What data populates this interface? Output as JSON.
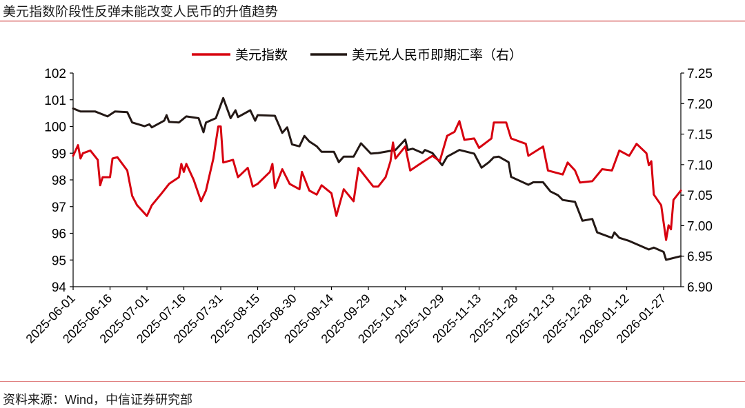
{
  "title": "美元指数阶段性反弹未能改变人民币的升值趋势",
  "source": "资料来源：Wind，中信证券研究部",
  "chart_data": {
    "type": "line",
    "title": "美元指数阶段性反弹未能改变人民币的升值趋势",
    "xlabel": "",
    "ylabel": "",
    "y2label": "",
    "xlim": [
      "2025-06-01",
      "2026-02-03"
    ],
    "ylim": [
      94,
      102
    ],
    "y2lim": [
      6.9,
      7.25
    ],
    "yticks": [
      "94",
      "95",
      "96",
      "97",
      "98",
      "99",
      "100",
      "101",
      "102"
    ],
    "y2ticks": [
      "6.90",
      "6.95",
      "7.00",
      "7.05",
      "7.10",
      "7.15",
      "7.20",
      "7.25"
    ],
    "xticks": [
      "2025-06-01",
      "2025-06-16",
      "2025-07-01",
      "2025-07-16",
      "2025-07-31",
      "2025-08-15",
      "2025-08-30",
      "2025-09-14",
      "2025-09-29",
      "2025-10-14",
      "2025-10-29",
      "2025-11-13",
      "2025-11-28",
      "2025-12-13",
      "2025-12-28",
      "2026-01-12",
      "2026-01-27"
    ],
    "grid": false,
    "legend_position": "top-center",
    "series": [
      {
        "name": "美元指数",
        "axis": "left",
        "color": "#d7000f",
        "points": [
          [
            "2025-06-01",
            98.9
          ],
          [
            "2025-06-03",
            99.3
          ],
          [
            "2025-06-04",
            98.8
          ],
          [
            "2025-06-05",
            99.0
          ],
          [
            "2025-06-08",
            99.1
          ],
          [
            "2025-06-11",
            98.75
          ],
          [
            "2025-06-12",
            97.8
          ],
          [
            "2025-06-13",
            98.1
          ],
          [
            "2025-06-16",
            98.1
          ],
          [
            "2025-06-17",
            98.8
          ],
          [
            "2025-06-19",
            98.85
          ],
          [
            "2025-06-23",
            98.35
          ],
          [
            "2025-06-25",
            97.4
          ],
          [
            "2025-06-27",
            97.05
          ],
          [
            "2025-07-01",
            96.65
          ],
          [
            "2025-07-03",
            97.05
          ],
          [
            "2025-07-07",
            97.5
          ],
          [
            "2025-07-10",
            97.85
          ],
          [
            "2025-07-14",
            98.1
          ],
          [
            "2025-07-15",
            98.6
          ],
          [
            "2025-07-16",
            98.3
          ],
          [
            "2025-07-17",
            98.6
          ],
          [
            "2025-07-20",
            98.0
          ],
          [
            "2025-07-23",
            97.2
          ],
          [
            "2025-07-25",
            97.6
          ],
          [
            "2025-07-28",
            98.8
          ],
          [
            "2025-07-30",
            100.0
          ],
          [
            "2025-07-31",
            100.0
          ],
          [
            "2025-08-01",
            98.65
          ],
          [
            "2025-08-05",
            98.75
          ],
          [
            "2025-08-07",
            98.1
          ],
          [
            "2025-08-11",
            98.45
          ],
          [
            "2025-08-13",
            97.75
          ],
          [
            "2025-08-15",
            97.85
          ],
          [
            "2025-08-20",
            98.3
          ],
          [
            "2025-08-21",
            98.6
          ],
          [
            "2025-08-22",
            97.7
          ],
          [
            "2025-08-25",
            98.4
          ],
          [
            "2025-08-28",
            97.85
          ],
          [
            "2025-09-01",
            97.65
          ],
          [
            "2025-09-02",
            98.3
          ],
          [
            "2025-09-05",
            97.6
          ],
          [
            "2025-09-08",
            97.45
          ],
          [
            "2025-09-10",
            97.8
          ],
          [
            "2025-09-14",
            97.5
          ],
          [
            "2025-09-16",
            96.65
          ],
          [
            "2025-09-19",
            97.65
          ],
          [
            "2025-09-23",
            97.2
          ],
          [
            "2025-09-25",
            98.45
          ],
          [
            "2025-10-01",
            97.75
          ],
          [
            "2025-10-03",
            97.75
          ],
          [
            "2025-10-06",
            98.1
          ],
          [
            "2025-10-08",
            98.7
          ],
          [
            "2025-10-09",
            99.4
          ],
          [
            "2025-10-10",
            98.8
          ],
          [
            "2025-10-14",
            99.25
          ],
          [
            "2025-10-16",
            98.35
          ],
          [
            "2025-10-20",
            98.6
          ],
          [
            "2025-10-25",
            98.9
          ],
          [
            "2025-10-28",
            98.7
          ],
          [
            "2025-10-31",
            99.65
          ],
          [
            "2025-11-03",
            99.8
          ],
          [
            "2025-11-05",
            100.2
          ],
          [
            "2025-11-07",
            99.5
          ],
          [
            "2025-11-11",
            99.55
          ],
          [
            "2025-11-13",
            99.2
          ],
          [
            "2025-11-18",
            99.55
          ],
          [
            "2025-11-19",
            100.15
          ],
          [
            "2025-11-24",
            100.15
          ],
          [
            "2025-11-26",
            99.55
          ],
          [
            "2025-12-02",
            99.35
          ],
          [
            "2025-12-03",
            98.9
          ],
          [
            "2025-12-09",
            99.25
          ],
          [
            "2025-12-11",
            98.35
          ],
          [
            "2025-12-17",
            98.2
          ],
          [
            "2025-12-19",
            98.65
          ],
          [
            "2025-12-22",
            98.35
          ],
          [
            "2025-12-24",
            97.9
          ],
          [
            "2025-12-29",
            97.95
          ],
          [
            "2026-01-02",
            98.4
          ],
          [
            "2026-01-06",
            98.35
          ],
          [
            "2026-01-09",
            99.1
          ],
          [
            "2026-01-13",
            98.9
          ],
          [
            "2026-01-16",
            99.35
          ],
          [
            "2026-01-20",
            99.0
          ],
          [
            "2026-01-21",
            98.55
          ],
          [
            "2026-01-22",
            98.7
          ],
          [
            "2026-01-23",
            97.45
          ],
          [
            "2026-01-26",
            97.05
          ],
          [
            "2026-01-28",
            95.75
          ],
          [
            "2026-01-29",
            96.3
          ],
          [
            "2026-01-30",
            96.15
          ],
          [
            "2026-01-31",
            97.25
          ],
          [
            "2026-02-03",
            97.6
          ]
        ]
      },
      {
        "name": "美元兑人民币即期汇率（右）",
        "axis": "right",
        "color": "#231815",
        "points": [
          [
            "2025-06-01",
            7.192
          ],
          [
            "2025-06-04",
            7.187
          ],
          [
            "2025-06-10",
            7.187
          ],
          [
            "2025-06-15",
            7.179
          ],
          [
            "2025-06-18",
            7.187
          ],
          [
            "2025-06-23",
            7.186
          ],
          [
            "2025-06-25",
            7.169
          ],
          [
            "2025-06-30",
            7.163
          ],
          [
            "2025-07-02",
            7.166
          ],
          [
            "2025-07-03",
            7.161
          ],
          [
            "2025-07-08",
            7.172
          ],
          [
            "2025-07-09",
            7.181
          ],
          [
            "2025-07-10",
            7.17
          ],
          [
            "2025-07-14",
            7.169
          ],
          [
            "2025-07-17",
            7.179
          ],
          [
            "2025-07-22",
            7.176
          ],
          [
            "2025-07-24",
            7.153
          ],
          [
            "2025-07-25",
            7.169
          ],
          [
            "2025-07-29",
            7.176
          ],
          [
            "2025-08-01",
            7.209
          ],
          [
            "2025-08-04",
            7.176
          ],
          [
            "2025-08-06",
            7.189
          ],
          [
            "2025-08-07",
            7.178
          ],
          [
            "2025-08-12",
            7.189
          ],
          [
            "2025-08-14",
            7.172
          ],
          [
            "2025-08-15",
            7.181
          ],
          [
            "2025-08-22",
            7.18
          ],
          [
            "2025-08-25",
            7.152
          ],
          [
            "2025-08-27",
            7.161
          ],
          [
            "2025-08-29",
            7.133
          ],
          [
            "2025-09-01",
            7.13
          ],
          [
            "2025-09-03",
            7.147
          ],
          [
            "2025-09-05",
            7.138
          ],
          [
            "2025-09-08",
            7.13
          ],
          [
            "2025-09-10",
            7.121
          ],
          [
            "2025-09-15",
            7.121
          ],
          [
            "2025-09-17",
            7.104
          ],
          [
            "2025-09-19",
            7.113
          ],
          [
            "2025-09-23",
            7.113
          ],
          [
            "2025-09-26",
            7.135
          ],
          [
            "2025-09-30",
            7.118
          ],
          [
            "2025-10-03",
            7.119
          ],
          [
            "2025-10-10",
            7.124
          ],
          [
            "2025-10-14",
            7.141
          ],
          [
            "2025-10-15",
            7.124
          ],
          [
            "2025-10-17",
            7.126
          ],
          [
            "2025-10-21",
            7.119
          ],
          [
            "2025-10-22",
            7.124
          ],
          [
            "2025-10-25",
            7.119
          ],
          [
            "2025-10-29",
            7.099
          ],
          [
            "2025-10-31",
            7.113
          ],
          [
            "2025-11-05",
            7.124
          ],
          [
            "2025-11-11",
            7.118
          ],
          [
            "2025-11-14",
            7.095
          ],
          [
            "2025-11-17",
            7.104
          ],
          [
            "2025-11-19",
            7.112
          ],
          [
            "2025-11-21",
            7.113
          ],
          [
            "2025-11-25",
            7.104
          ],
          [
            "2025-11-26",
            7.08
          ],
          [
            "2025-12-03",
            7.067
          ],
          [
            "2025-12-05",
            7.071
          ],
          [
            "2025-12-09",
            7.071
          ],
          [
            "2025-12-12",
            7.056
          ],
          [
            "2025-12-15",
            7.05
          ],
          [
            "2025-12-17",
            7.042
          ],
          [
            "2025-12-22",
            7.039
          ],
          [
            "2025-12-25",
            7.008
          ],
          [
            "2025-12-29",
            7.011
          ],
          [
            "2025-12-31",
            6.989
          ],
          [
            "2026-01-06",
            6.98
          ],
          [
            "2026-01-07",
            6.989
          ],
          [
            "2026-01-09",
            6.98
          ],
          [
            "2026-01-13",
            6.975
          ],
          [
            "2026-01-21",
            6.961
          ],
          [
            "2026-01-23",
            6.964
          ],
          [
            "2026-01-27",
            6.957
          ],
          [
            "2026-01-28",
            6.944
          ],
          [
            "2026-02-03",
            6.95
          ]
        ]
      }
    ]
  }
}
